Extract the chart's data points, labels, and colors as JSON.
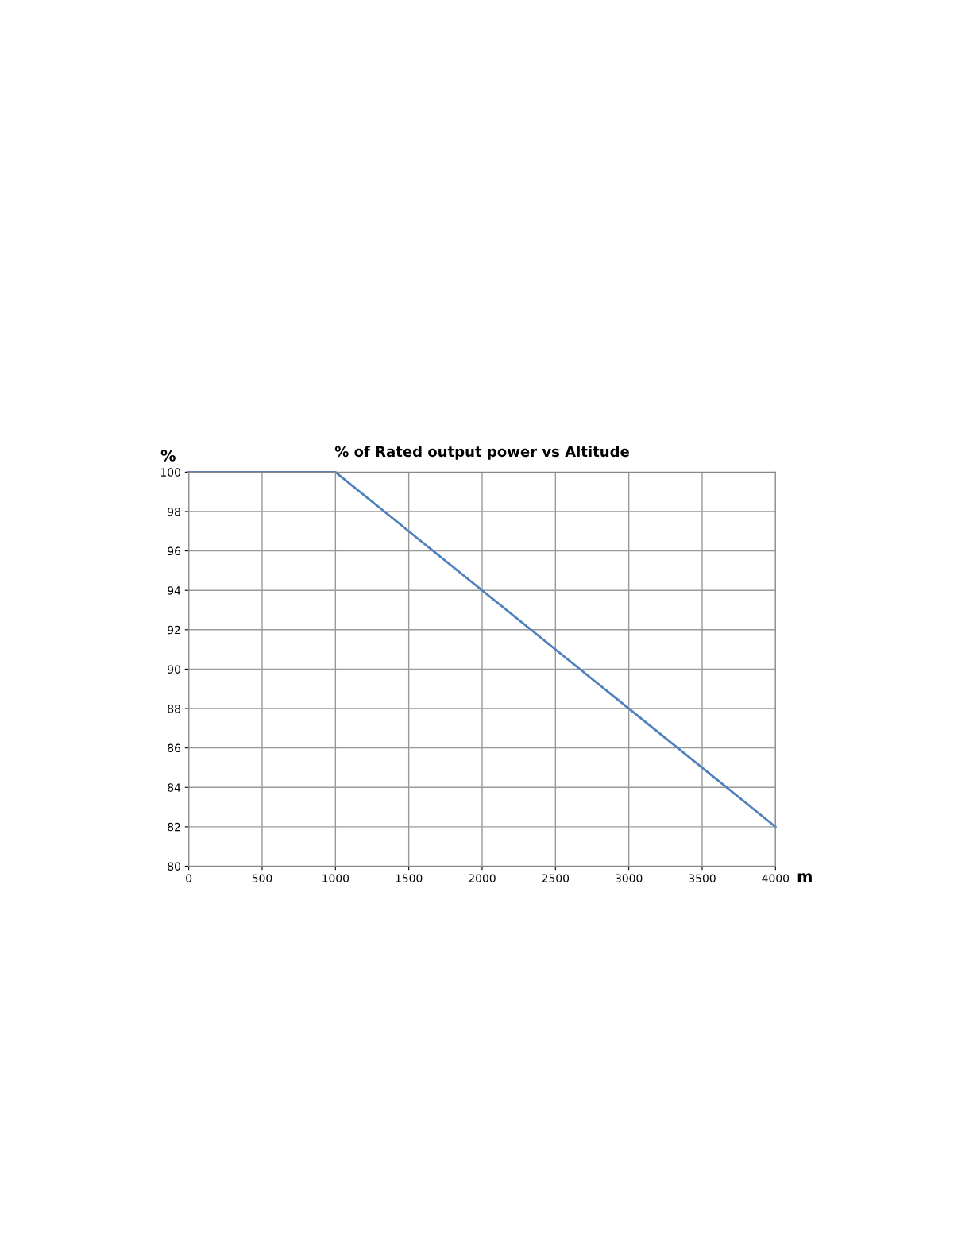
{
  "chart_data": {
    "type": "line",
    "title": "% of Rated output power vs Altitude",
    "xlabel": "m",
    "ylabel": "%",
    "x": [
      0,
      1000,
      4000
    ],
    "series": [
      {
        "color": "#4f81bd",
        "values": [
          100,
          100,
          82
        ]
      }
    ],
    "xlim": [
      0,
      4000
    ],
    "xticks": [
      0,
      500,
      1000,
      1500,
      2000,
      2500,
      3000,
      3500,
      4000
    ],
    "ylim": [
      80,
      100
    ],
    "yticks": [
      80,
      82,
      84,
      86,
      88,
      90,
      92,
      94,
      96,
      98,
      100
    ],
    "grid": true,
    "legend": false,
    "marker": "none",
    "line_style": "solid"
  }
}
